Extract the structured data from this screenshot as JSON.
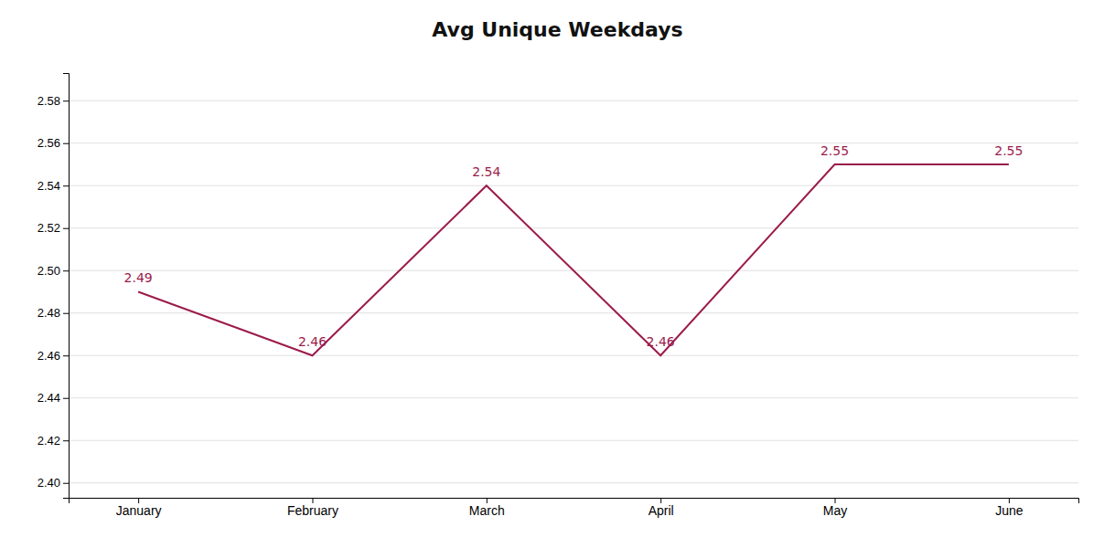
{
  "chart_data": {
    "type": "line",
    "title": "Avg Unique Weekdays",
    "categories": [
      "January",
      "February",
      "March",
      "April",
      "May",
      "June"
    ],
    "values": [
      2.49,
      2.46,
      2.54,
      2.46,
      2.55,
      2.55
    ],
    "color": "#9B1B4B",
    "ylim": [
      2.393,
      2.593
    ],
    "yticks": [
      {
        "value": 2.4,
        "label": "2.40"
      },
      2.42,
      2.44,
      2.46,
      2.48,
      {
        "value": 2.5,
        "label": "2.50"
      },
      2.52,
      2.54,
      2.56,
      2.58
    ],
    "grid": true,
    "data_labels": true
  }
}
